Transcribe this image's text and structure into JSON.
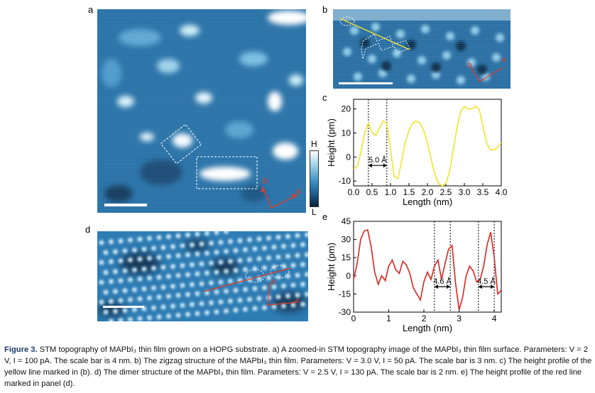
{
  "panels": {
    "a": {
      "label": "a"
    },
    "b": {
      "label": "b"
    },
    "c": {
      "label": "c"
    },
    "d": {
      "label": "d"
    },
    "e": {
      "label": "e"
    }
  },
  "colorbar": {
    "high": "H",
    "low": "L"
  },
  "axes_labels": {
    "a": "a",
    "b": "b"
  },
  "annotations": {
    "c_dist": "5.0 Å",
    "e_dist1": "4.6 Å",
    "e_dist2": "4.5 Å"
  },
  "colors": {
    "stm_dark": "#0b2a45",
    "stm_mid": "#2e7cb4",
    "stm_light": "#bfe6f5",
    "yellow": "#f2e32a",
    "red": "#d8261f"
  },
  "chart_data": [
    {
      "id": "c",
      "type": "line",
      "xlabel": "Length (nm)",
      "ylabel": "Height (pm)",
      "xlim": [
        0.0,
        4.0
      ],
      "ylim": [
        -12,
        24
      ],
      "xticks": [
        "0.0",
        "0.5",
        "1.0",
        "1.5",
        "2.0",
        "2.5",
        "3.0",
        "3.5",
        "4.0"
      ],
      "yticks": [
        "-10",
        "0",
        "10",
        "20"
      ],
      "series": [
        {
          "color": "#f2e32a",
          "x": [
            0.0,
            0.1,
            0.2,
            0.3,
            0.4,
            0.5,
            0.6,
            0.7,
            0.8,
            0.9,
            1.0,
            1.1,
            1.2,
            1.3,
            1.4,
            1.5,
            1.6,
            1.7,
            1.8,
            1.9,
            2.0,
            2.1,
            2.2,
            2.3,
            2.4,
            2.5,
            2.6,
            2.7,
            2.8,
            2.9,
            3.0,
            3.1,
            3.2,
            3.3,
            3.4,
            3.5,
            3.6,
            3.7,
            3.8,
            3.9,
            4.0
          ],
          "y": [
            -5,
            -4,
            2,
            10,
            14,
            10,
            9,
            12,
            15,
            14,
            3,
            -8,
            -9,
            -2,
            6,
            11,
            14,
            15,
            14,
            11,
            6,
            -1,
            -7,
            -11,
            -12,
            -11,
            -6,
            3,
            12,
            19,
            21,
            20,
            20,
            21,
            20,
            13,
            6,
            3,
            3,
            4,
            6
          ]
        }
      ]
    },
    {
      "id": "e",
      "type": "line",
      "xlabel": "Length (nm)",
      "ylabel": "Height (pm)",
      "xlim": [
        0,
        4.2
      ],
      "ylim": [
        -30,
        45
      ],
      "xticks": [
        "0",
        "1",
        "2",
        "3",
        "4"
      ],
      "yticks": [
        "-30",
        "-15",
        "0",
        "15",
        "30",
        "45"
      ],
      "series": [
        {
          "color": "#d8261f",
          "x": [
            0.0,
            0.1,
            0.2,
            0.3,
            0.4,
            0.5,
            0.6,
            0.7,
            0.8,
            0.9,
            1.0,
            1.1,
            1.2,
            1.3,
            1.4,
            1.5,
            1.6,
            1.7,
            1.8,
            1.9,
            2.0,
            2.1,
            2.2,
            2.3,
            2.4,
            2.5,
            2.6,
            2.7,
            2.8,
            2.9,
            3.0,
            3.1,
            3.2,
            3.3,
            3.4,
            3.5,
            3.6,
            3.7,
            3.8,
            3.9,
            4.0,
            4.1,
            4.2
          ],
          "y": [
            -3,
            10,
            30,
            37,
            38,
            24,
            3,
            -7,
            0,
            -4,
            8,
            13,
            5,
            2,
            12,
            9,
            2,
            -10,
            -15,
            -20,
            -5,
            3,
            -3,
            8,
            13,
            -3,
            10,
            22,
            25,
            -6,
            -28,
            -18,
            0,
            8,
            4,
            -5,
            -3,
            8,
            26,
            36,
            15,
            -15,
            -12
          ]
        }
      ]
    }
  ],
  "caption": {
    "fig_label": "Figure 3.",
    "text": "STM topography of MAPbI₃ thin film grown on a HOPG substrate. a) A zoomed-in STM topography image of the MAPbI₃ thin film surface. Parameters: V = 2 V, I = 100 pA. The scale bar is 4 nm. b) The zigzag structure of the MAPbI₃ thin film. Parameters: V = 3.0 V, I = 50 pA. The scale bar is 3 nm. c) The height profile of the yellow line marked in (b). d) The dimer structure of the MAPbI₃ thin film. Parameters: V = 2.5 V, I = 130 pA. The scale bar is 2 nm. e) The height profile of the red line marked in panel (d)."
  }
}
